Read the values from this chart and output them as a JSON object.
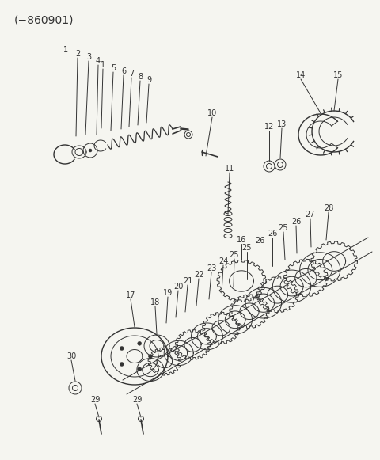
{
  "title": "(−860901)",
  "bg_color": "#f5f5f0",
  "line_color": "#333333",
  "title_fontsize": 10,
  "label_fontsize": 7
}
